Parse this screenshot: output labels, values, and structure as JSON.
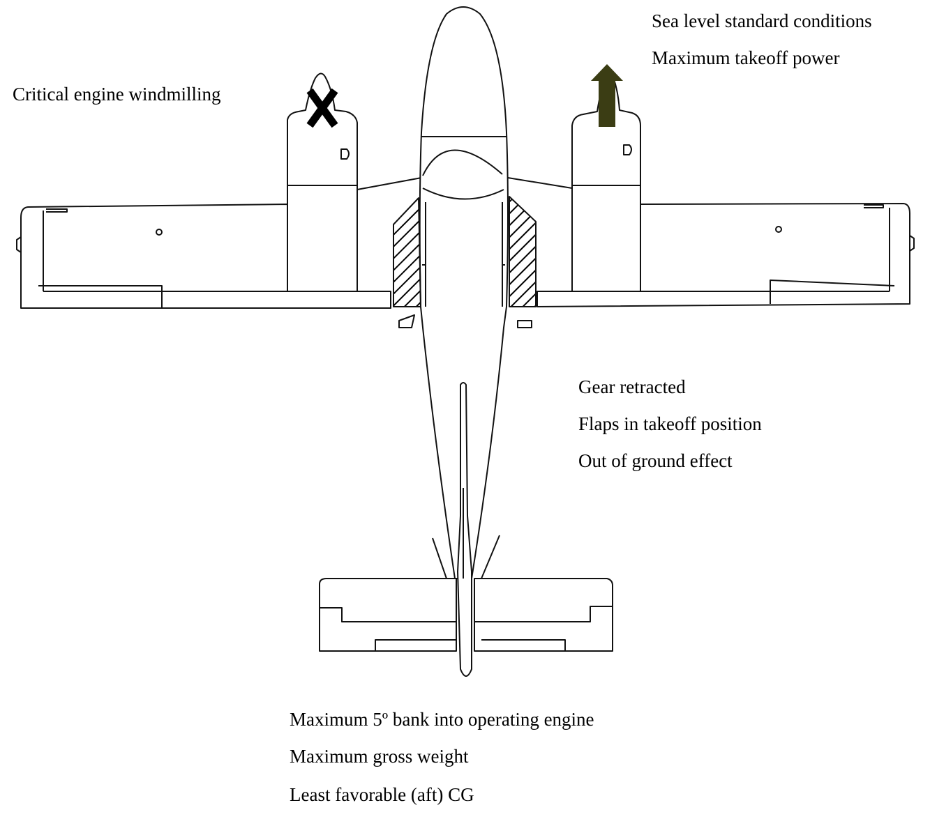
{
  "annotations": {
    "top_right": [
      "Sea level standard conditions",
      "Maximum takeoff power"
    ],
    "top_left": "Critical engine windmilling",
    "middle_right": [
      "Gear retracted",
      "Flaps in takeoff position",
      "Out of ground effect"
    ],
    "bottom": [
      "Maximum 5º bank into operating engine",
      "Maximum gross weight",
      "Least favorable (aft) CG"
    ]
  },
  "markers": {
    "inoperative_engine_symbol": "X",
    "inoperative_engine_side": "left",
    "thrust_arrow_side": "right",
    "thrust_arrow_color": "#3b3d14"
  },
  "icons": {
    "aircraft": "twin-engine-airplane-top-view",
    "thrust": "arrow-up-icon",
    "failed_engine": "x-mark-icon"
  }
}
